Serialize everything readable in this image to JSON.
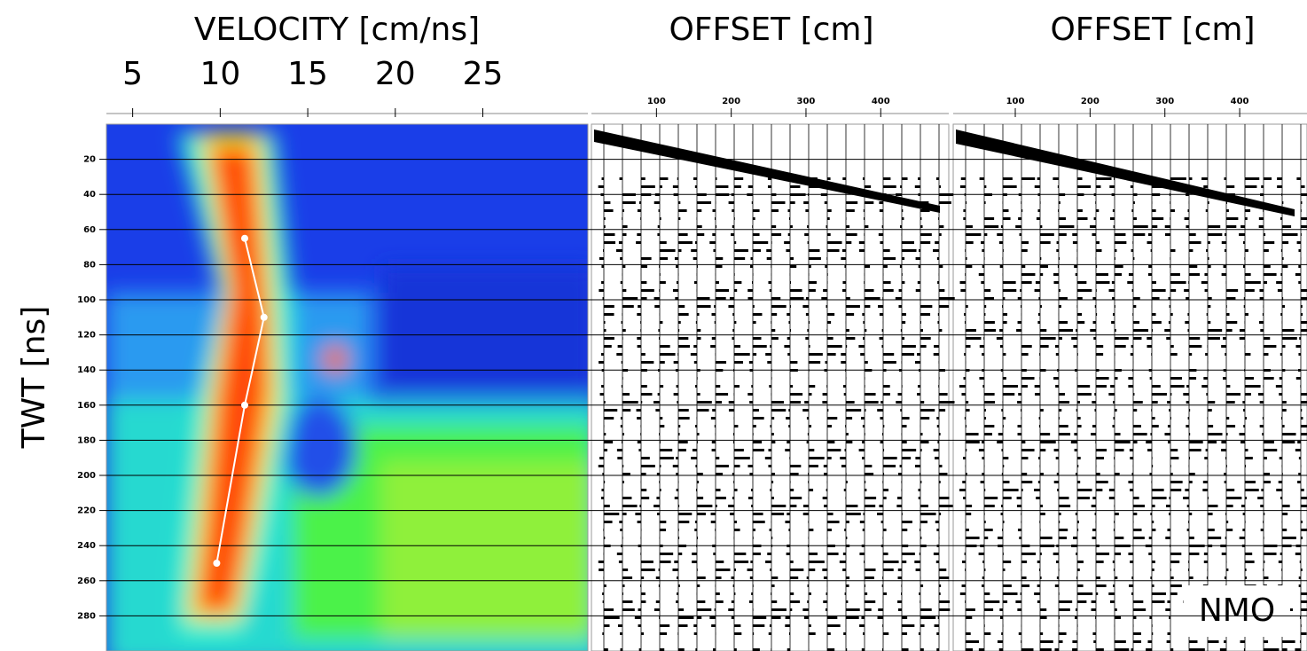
{
  "chart_data": [
    {
      "type": "line",
      "title": "VELOCITY [cm/ns]",
      "y_label": "TWT [ns]",
      "xlim": [
        3.5,
        31
      ],
      "xticks": [
        5,
        10,
        15,
        20,
        25
      ],
      "ylim": [
        0,
        300
      ],
      "yticks": [
        20,
        40,
        60,
        80,
        100,
        120,
        140,
        160,
        180,
        200,
        220,
        240,
        260,
        280
      ],
      "grid": true,
      "series": [
        {
          "color": "#ffffff",
          "x": [
            11.4,
            12.5,
            11.4,
            9.8
          ],
          "values": [
            65,
            110,
            160,
            250
          ]
        }
      ]
    },
    {
      "type": "wiggle",
      "title": "OFFSET [cm]",
      "xlim": [
        13,
        491
      ],
      "xticks": [
        100,
        200,
        300,
        400
      ],
      "ylim": [
        0,
        300
      ]
    },
    {
      "type": "wiggle",
      "title": "OFFSET [cm]",
      "annotation": "NMO",
      "xlim": [
        17,
        490
      ],
      "xticks": [
        100,
        200,
        300,
        400
      ],
      "ylim": [
        0,
        300
      ]
    }
  ]
}
